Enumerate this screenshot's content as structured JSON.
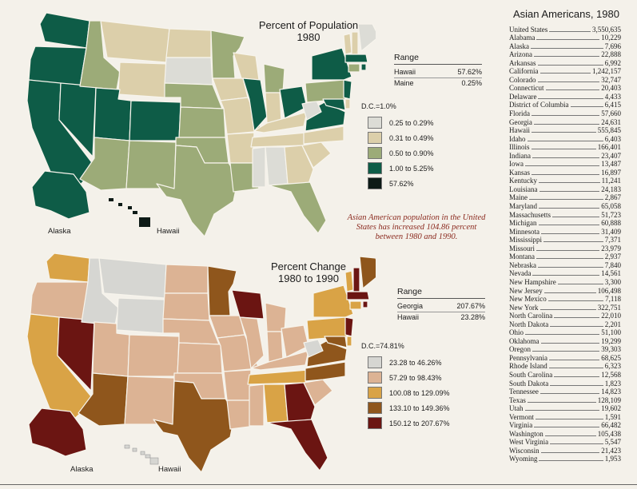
{
  "map1": {
    "title_line1": "Percent of Population",
    "title_line2": "1980",
    "range": {
      "heading": "Range",
      "rows": [
        {
          "state": "Hawaii",
          "value": "57.62%"
        },
        {
          "state": "Maine",
          "value": "0.25%"
        }
      ]
    },
    "legend": {
      "dc": "D.C.=1.0%",
      "items": [
        {
          "label": "0.25 to 0.29%",
          "color": "#dcdcd6"
        },
        {
          "label": "0.31 to 0.49%",
          "color": "#dccfaa"
        },
        {
          "label": "0.50 to 0.90%",
          "color": "#9cab78"
        },
        {
          "label": "1.00 to 5.25%",
          "color": "#0e5c47"
        },
        {
          "label": "57.62%",
          "color": "#0d1a16"
        }
      ]
    },
    "label_alaska": "Alaska",
    "label_hawaii": "Hawaii"
  },
  "note": "Asian American population in the United States has increased 104.86 percent between 1980 and 1990.",
  "map2": {
    "title_line1": "Percent Change",
    "title_line2": "1980 to 1990",
    "range": {
      "heading": "Range",
      "rows": [
        {
          "state": "Georgia",
          "value": "207.67%"
        },
        {
          "state": "Hawaii",
          "value": "23.28%"
        }
      ]
    },
    "legend": {
      "dc": "D.C.=74.81%",
      "items": [
        {
          "label": "23.28 to 46.26%",
          "color": "#d6d6d2"
        },
        {
          "label": "57.29 to 98.43%",
          "color": "#dcb394"
        },
        {
          "label": "100.08 to 129.09%",
          "color": "#d9a346"
        },
        {
          "label": "133.10 to 149.36%",
          "color": "#8f561c"
        },
        {
          "label": "150.12 to 207.67%",
          "color": "#6b1512"
        }
      ]
    },
    "label_alaska": "Alaska",
    "label_hawaii": "Hawaii"
  },
  "table": {
    "title": "Asian Americans, 1980",
    "rows": [
      {
        "name": "United States",
        "value": "3,550,635"
      },
      {
        "name": "Alabama",
        "value": "10,229"
      },
      {
        "name": "Alaska",
        "value": "7,696"
      },
      {
        "name": "Arizona",
        "value": "22,888"
      },
      {
        "name": "Arkansas",
        "value": "6,992"
      },
      {
        "name": "California",
        "value": "1,242,157"
      },
      {
        "name": "Colorado",
        "value": "32,747"
      },
      {
        "name": "Connecticut",
        "value": "20,403"
      },
      {
        "name": "Delaware",
        "value": "4,433"
      },
      {
        "name": "District of Columbia",
        "value": "6,415"
      },
      {
        "name": "Florida",
        "value": "57,660"
      },
      {
        "name": "Georgia",
        "value": "24,631"
      },
      {
        "name": "Hawaii",
        "value": "555,845"
      },
      {
        "name": "Idaho",
        "value": "6,403"
      },
      {
        "name": "Illinois",
        "value": "166,401"
      },
      {
        "name": "Indiana",
        "value": "23,407"
      },
      {
        "name": "Iowa",
        "value": "13,487"
      },
      {
        "name": "Kansas",
        "value": "16,897"
      },
      {
        "name": "Kentucky",
        "value": "11,241"
      },
      {
        "name": "Louisiana",
        "value": "24,183"
      },
      {
        "name": "Maine",
        "value": "2,867"
      },
      {
        "name": "Maryland",
        "value": "65,058"
      },
      {
        "name": "Massachusetts",
        "value": "51,723"
      },
      {
        "name": "Michigan",
        "value": "60,888"
      },
      {
        "name": "Minnesota",
        "value": "31,409"
      },
      {
        "name": "Mississippi",
        "value": "7,371"
      },
      {
        "name": "Missouri",
        "value": "23,979"
      },
      {
        "name": "Montana",
        "value": "2,937"
      },
      {
        "name": "Nebraska",
        "value": "7,840"
      },
      {
        "name": "Nevada",
        "value": "14,561"
      },
      {
        "name": "New Hampshire",
        "value": "3,300"
      },
      {
        "name": "New Jersey",
        "value": "106,498"
      },
      {
        "name": "New Mexico",
        "value": "7,118"
      },
      {
        "name": "New York",
        "value": "322,751"
      },
      {
        "name": "North Carolina",
        "value": "22,010"
      },
      {
        "name": "North Dakota",
        "value": "2,201"
      },
      {
        "name": "Ohio",
        "value": "51,100"
      },
      {
        "name": "Oklahoma",
        "value": "19,299"
      },
      {
        "name": "Oregon",
        "value": "39,303"
      },
      {
        "name": "Pennsylvania",
        "value": "68,625"
      },
      {
        "name": "Rhode Island",
        "value": "6,323"
      },
      {
        "name": "South Carolina",
        "value": "12,568"
      },
      {
        "name": "South Dakota",
        "value": "1,823"
      },
      {
        "name": "Tennessee",
        "value": "14,823"
      },
      {
        "name": "Texas",
        "value": "128,109"
      },
      {
        "name": "Utah",
        "value": "19,602"
      },
      {
        "name": "Vermont",
        "value": "1,591"
      },
      {
        "name": "Virginia",
        "value": "66,482"
      },
      {
        "name": "Washington",
        "value": "105,438"
      },
      {
        "name": "West Virginia",
        "value": "5,547"
      },
      {
        "name": "Wisconsin",
        "value": "21,423"
      },
      {
        "name": "Wyoming",
        "value": "1,953"
      }
    ]
  }
}
